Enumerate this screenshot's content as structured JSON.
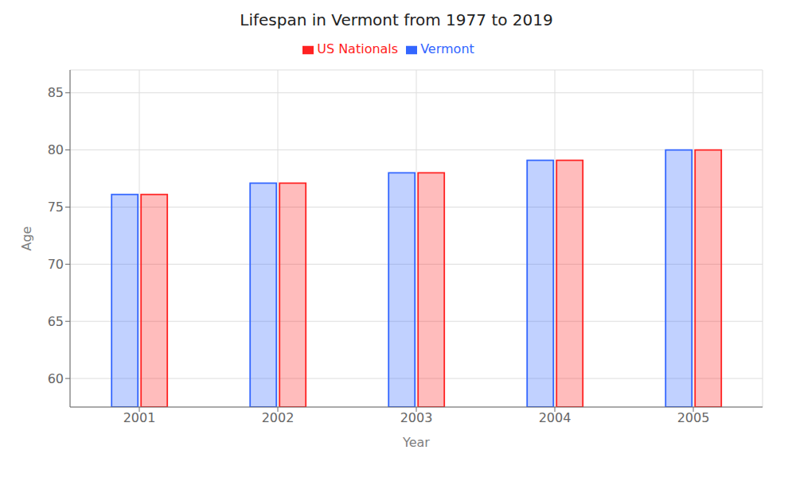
{
  "chart_data": {
    "type": "bar",
    "title": "Lifespan in Vermont from 1977 to 2019",
    "x_label": "Year",
    "y_label": "Age",
    "categories": [
      "2001",
      "2002",
      "2003",
      "2004",
      "2005"
    ],
    "series": [
      {
        "name": "Vermont",
        "color": "#3366ff",
        "values": [
          76.1,
          77.1,
          78.0,
          79.1,
          80.0
        ]
      },
      {
        "name": "US Nationals",
        "color": "#ff2222",
        "values": [
          76.1,
          77.1,
          78.0,
          79.1,
          80.0
        ]
      }
    ],
    "ylim": [
      57.5,
      87
    ],
    "yticks": [
      60,
      65,
      70,
      75,
      80,
      85
    ],
    "grid": true,
    "legend": "top"
  }
}
